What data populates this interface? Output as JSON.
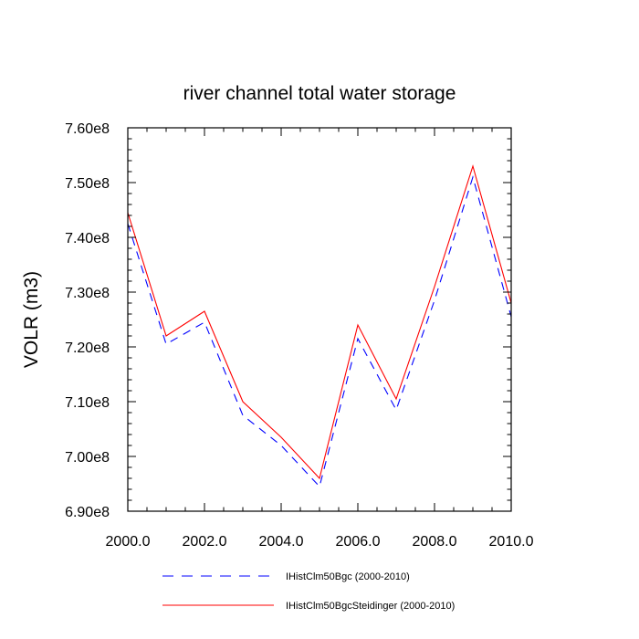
{
  "chart_data": {
    "type": "line",
    "title": "river channel total water storage",
    "xlabel": "",
    "ylabel": "VOLR  (m3)",
    "xlim": [
      2000,
      2010
    ],
    "ylim": [
      690000000,
      760000000
    ],
    "x_ticks": [
      2000,
      2002,
      2004,
      2006,
      2008,
      2010
    ],
    "x_tick_labels": [
      "2000.0",
      "2002.0",
      "2004.0",
      "2006.0",
      "2008.0",
      "2010.0"
    ],
    "y_ticks": [
      690000000,
      700000000,
      710000000,
      720000000,
      730000000,
      740000000,
      750000000,
      760000000
    ],
    "y_tick_labels": [
      "6.90e8",
      "7.00e8",
      "7.10e8",
      "7.20e8",
      "7.30e8",
      "7.40e8",
      "7.50e8",
      "7.60e8"
    ],
    "x": [
      2000,
      2001,
      2002,
      2003,
      2004,
      2005,
      2006,
      2007,
      2008,
      2009,
      2010
    ],
    "series": [
      {
        "name": "IHistClm50Bgc (2000-2010)",
        "color": "#0000ff",
        "dash": "dashed",
        "values": [
          742500000,
          720500000,
          724500000,
          707500000,
          702000000,
          694500000,
          721500000,
          708500000,
          728500000,
          751000000,
          725500000
        ]
      },
      {
        "name": "IHistClm50BgcSteidinger (2000-2010)",
        "color": "#ff0000",
        "dash": "solid",
        "values": [
          744500000,
          722000000,
          726500000,
          710000000,
          703500000,
          696000000,
          724000000,
          710500000,
          731000000,
          753000000,
          728000000
        ]
      }
    ],
    "grid": false,
    "legend_position": "bottom"
  }
}
